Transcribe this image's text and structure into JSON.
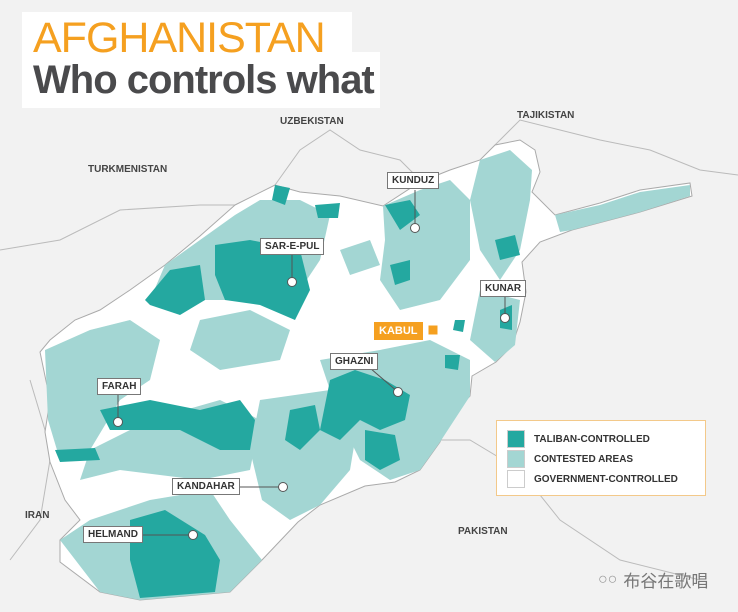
{
  "title": {
    "line1": "AFGHANISTAN",
    "line2": "Who controls what"
  },
  "colors": {
    "taliban": "#24a8a0",
    "contested": "#a3d6d3",
    "government": "#ffffff",
    "accent": "#f5a020",
    "background": "#f2f2f2"
  },
  "countries": {
    "uzbekistan": "UZBEKISTAN",
    "tajikistan": "TAJIKISTAN",
    "turkmenistan": "TURKMENISTAN",
    "iran": "IRAN",
    "pakistan": "PAKISTAN"
  },
  "cities": {
    "kunduz": "KUNDUZ",
    "sar_e_pul": "SAR-E-PUL",
    "kunar": "KUNAR",
    "kabul": "KABUL",
    "ghazni": "GHAZNI",
    "farah": "FARAH",
    "kandahar": "KANDAHAR",
    "helmand": "HELMAND"
  },
  "legend": [
    {
      "label": "TALIBAN-CONTROLLED",
      "color": "#24a8a0"
    },
    {
      "label": "CONTESTED AREAS",
      "color": "#a3d6d3"
    },
    {
      "label": "GOVERNMENT-CONTROLLED",
      "color": "#ffffff"
    }
  ],
  "watermark": "布谷在歌唱"
}
